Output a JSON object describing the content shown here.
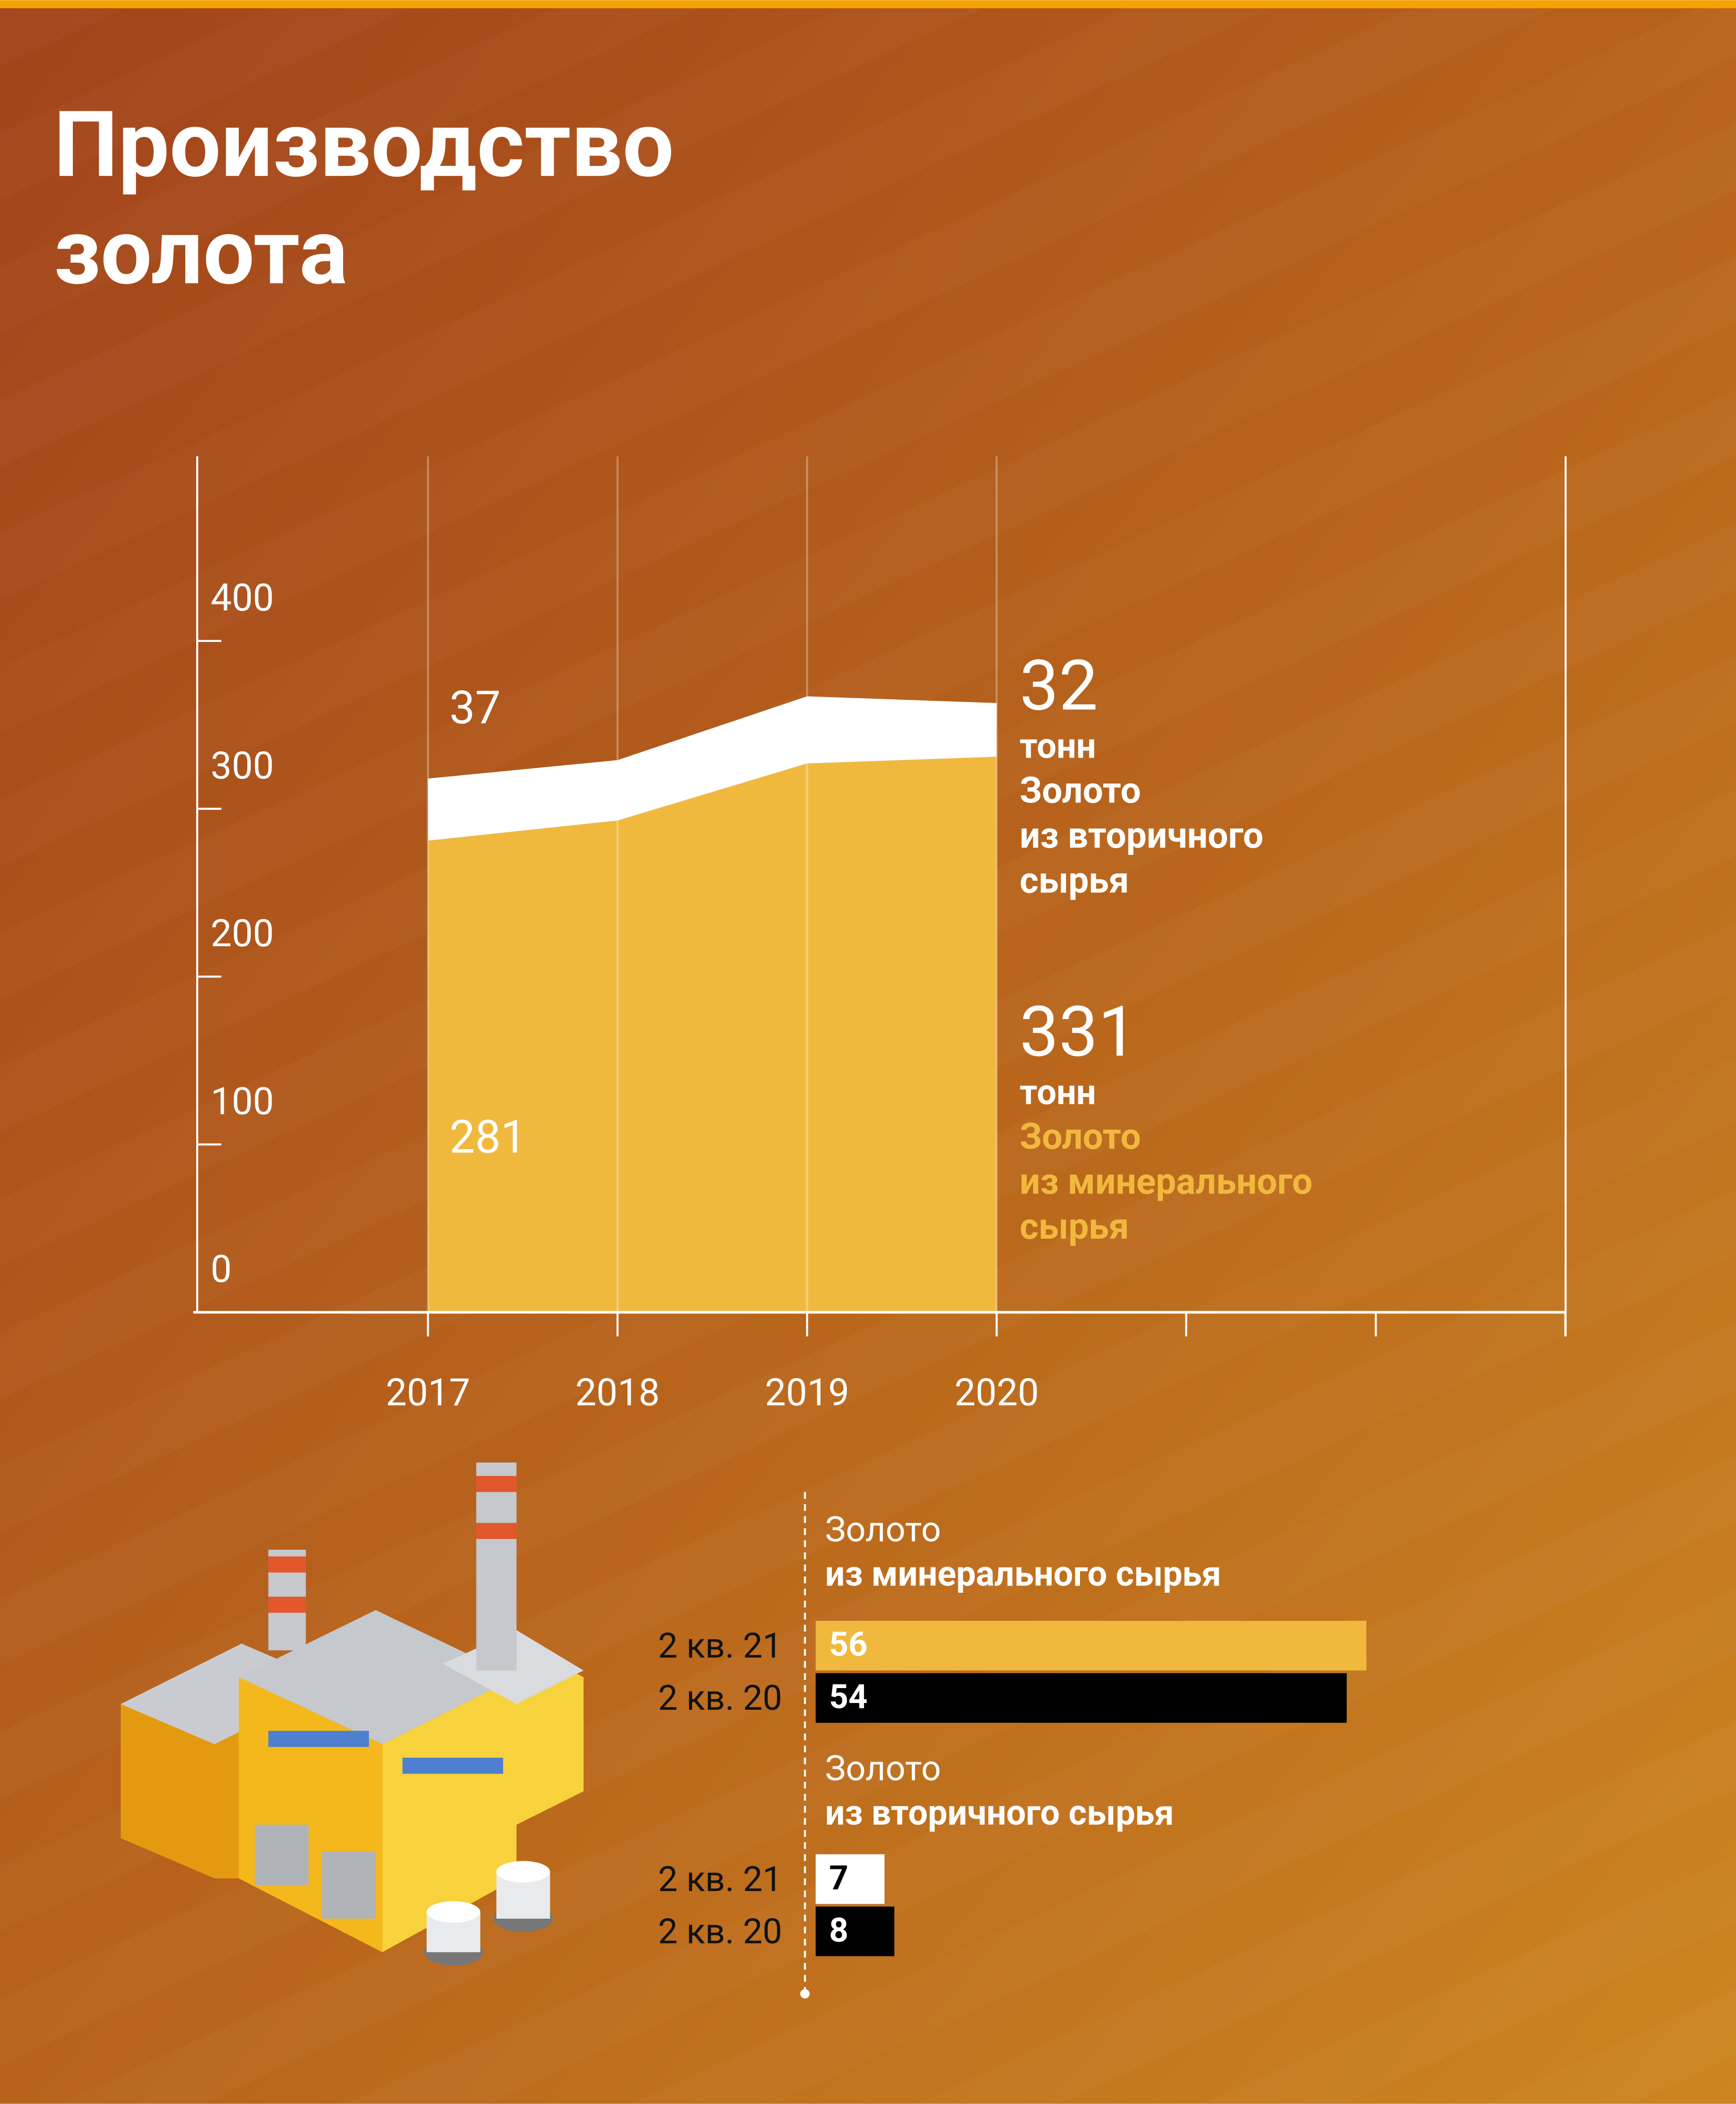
{
  "header": {
    "title": [
      "Производство",
      "золота"
    ]
  },
  "chart_data": [
    {
      "type": "stacked-area",
      "categories": [
        "2017",
        "2018",
        "2019",
        "2020",
        null,
        null,
        null
      ],
      "series": [
        {
          "name": "Золото из минерального сырья",
          "label": [
            "Золото",
            "из минерального",
            "сырья"
          ],
          "color": "#f0b93e",
          "values": [
            281,
            293,
            327,
            331,
            null,
            null,
            null
          ]
        },
        {
          "name": "Золото из вторичного сырья",
          "label": [
            "Золото",
            "из вторичного",
            "сырья"
          ],
          "color": "#ffffff",
          "values": [
            37,
            36,
            40,
            32,
            null,
            null,
            null
          ]
        }
      ],
      "unit": "тонн",
      "ylim": [
        0,
        510
      ],
      "yticks": [
        0,
        100,
        200,
        300,
        400
      ],
      "grid": true
    },
    {
      "type": "hbar",
      "groups": [
        {
          "title": [
            "Золото",
            "из минерального сырья"
          ],
          "categories": [
            "2 кв. 21",
            "2 кв. 20"
          ],
          "values": [
            56,
            54
          ],
          "colors": [
            "#f0b93e",
            "#000000"
          ]
        },
        {
          "title": [
            "Золото",
            "из вторичного сырья"
          ],
          "categories": [
            "2 кв. 21",
            "2 кв. 20"
          ],
          "values": [
            7,
            8
          ],
          "colors": [
            "#ffffff",
            "#000000"
          ]
        }
      ]
    }
  ]
}
